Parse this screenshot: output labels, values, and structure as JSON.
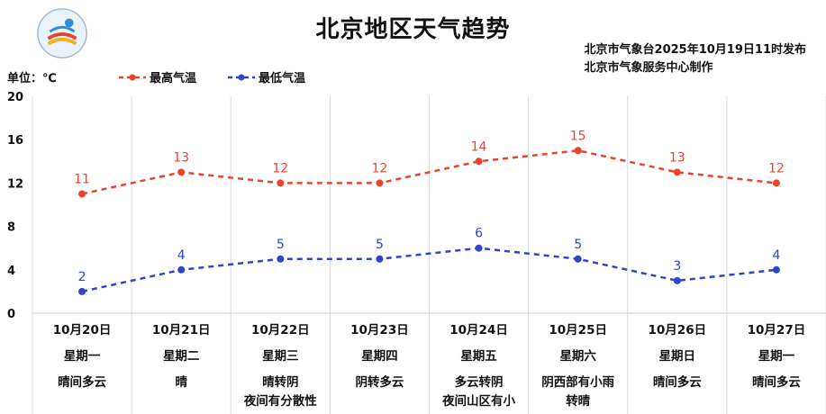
{
  "header": {
    "title": "北京地区天气趋势",
    "source_line1": "北京市气象台2025年10月19日11时发布",
    "source_line2": "北京市气象服务中心制作"
  },
  "unit_label": "单位：℃",
  "colors": {
    "high": "#e8452c",
    "low": "#2f46c8",
    "grid": "#dcdcdc"
  },
  "chart_data": {
    "type": "line",
    "title": "北京地区天气趋势",
    "ylim": [
      0,
      20
    ],
    "yticks": [
      0,
      4,
      8,
      12,
      16,
      20
    ],
    "grid": true,
    "legend_position": "top-left",
    "categories": [
      "10月20日",
      "10月21日",
      "10月22日",
      "10月23日",
      "10月24日",
      "10月25日",
      "10月26日",
      "10月27日"
    ],
    "series": [
      {
        "name": "最高气温",
        "values": [
          11,
          13,
          12,
          12,
          14,
          15,
          13,
          12
        ]
      },
      {
        "name": "最低气温",
        "values": [
          2,
          4,
          5,
          5,
          6,
          5,
          3,
          4
        ]
      }
    ]
  },
  "days": [
    {
      "date": "10月20日",
      "weekday": "星期一",
      "weather": [
        "晴间多云"
      ]
    },
    {
      "date": "10月21日",
      "weekday": "星期二",
      "weather": [
        "晴"
      ]
    },
    {
      "date": "10月22日",
      "weekday": "星期三",
      "weather": [
        "晴转阴",
        "夜间有分散性"
      ]
    },
    {
      "date": "10月23日",
      "weekday": "星期四",
      "weather": [
        "阴转多云"
      ]
    },
    {
      "date": "10月24日",
      "weekday": "星期五",
      "weather": [
        "多云转阴",
        "夜间山区有小"
      ]
    },
    {
      "date": "10月25日",
      "weekday": "星期六",
      "weather": [
        "阴西部有小雨",
        "转晴"
      ]
    },
    {
      "date": "10月26日",
      "weekday": "星期日",
      "weather": [
        "晴间多云"
      ]
    },
    {
      "date": "10月27日",
      "weekday": "星期一",
      "weather": [
        "晴间多云"
      ]
    }
  ]
}
